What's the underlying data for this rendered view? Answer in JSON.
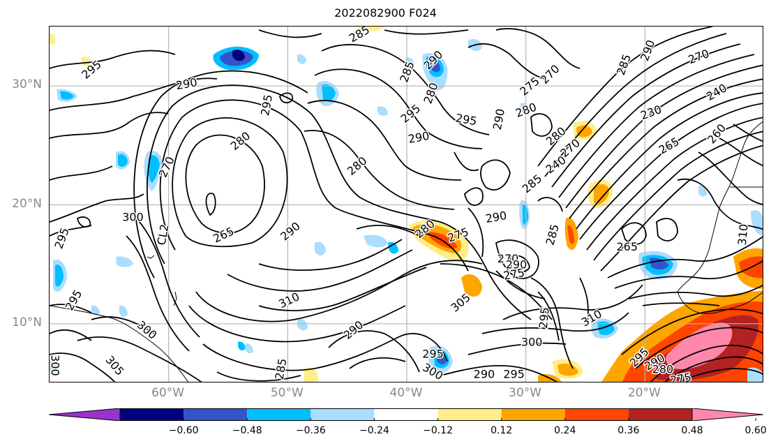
{
  "title": "2022082900 F024",
  "lat_labels": [
    {
      "label": "30°N",
      "lat": 30
    },
    {
      "label": "20°N",
      "lat": 20
    },
    {
      "label": "10°N",
      "lat": 10
    }
  ],
  "lon_labels": [
    {
      "label": "60°W",
      "lon": -60
    },
    {
      "label": "50°W",
      "lon": -50
    },
    {
      "label": "40°W",
      "lon": -40
    },
    {
      "label": "30°W",
      "lon": -30
    },
    {
      "label": "20°W",
      "lon": -20
    }
  ],
  "extent": {
    "lon_min": -70,
    "lon_max": -10,
    "lat_min": 5,
    "lat_max": 35
  },
  "colorbar": {
    "ticks": [
      "−0.60",
      "−0.48",
      "−0.36",
      "−0.24",
      "−0.12",
      "0.12",
      "0.24",
      "0.36",
      "0.48",
      "0.60"
    ],
    "colors": [
      "#9933cc",
      "#000080",
      "#3355cc",
      "#00bfff",
      "#aaddff",
      "#ffffff",
      "#ffee88",
      "#ffa500",
      "#ff4500",
      "#b22222",
      "#ff88aa"
    ]
  },
  "contour_labels": [
    {
      "text": "295",
      "lon": -66.5,
      "lat": 31.4,
      "rot": -40
    },
    {
      "text": "290",
      "lon": -58.5,
      "lat": 30.2,
      "rot": -10
    },
    {
      "text": "295",
      "lon": -51.8,
      "lat": 28.4,
      "rot": -80
    },
    {
      "text": "280",
      "lon": -54.0,
      "lat": 25.4,
      "rot": -40
    },
    {
      "text": "270",
      "lon": -60.2,
      "lat": 23.2,
      "rot": -65
    },
    {
      "text": "265",
      "lon": -55.4,
      "lat": 17.5,
      "rot": -25
    },
    {
      "text": "300",
      "lon": -63.0,
      "lat": 19.0,
      "rot": 0
    },
    {
      "text": "CL2",
      "lon": -60.5,
      "lat": 17.5,
      "rot": -80
    },
    {
      "text": "295",
      "lon": -69.0,
      "lat": 17.2,
      "rot": -70
    },
    {
      "text": "295",
      "lon": -68.0,
      "lat": 12.0,
      "rot": -60
    },
    {
      "text": "300",
      "lon": -61.8,
      "lat": 9.5,
      "rot": 40
    },
    {
      "text": "300",
      "lon": -69.5,
      "lat": 6.5,
      "rot": 90
    },
    {
      "text": "305",
      "lon": -64.5,
      "lat": 6.5,
      "rot": 50
    },
    {
      "text": "290",
      "lon": -49.8,
      "lat": 17.8,
      "rot": -40
    },
    {
      "text": "310",
      "lon": -49.9,
      "lat": 12.0,
      "rot": -25
    },
    {
      "text": "290",
      "lon": -44.5,
      "lat": 9.5,
      "rot": -40
    },
    {
      "text": "285",
      "lon": -50.6,
      "lat": 6.2,
      "rot": -80
    },
    {
      "text": "280",
      "lon": -44.2,
      "lat": 23.3,
      "rot": -40
    },
    {
      "text": "290",
      "lon": -39.0,
      "lat": 25.7,
      "rot": -10
    },
    {
      "text": "295",
      "lon": -39.7,
      "lat": 27.7,
      "rot": -40
    },
    {
      "text": "295",
      "lon": -35.0,
      "lat": 27.2,
      "rot": 10
    },
    {
      "text": "290",
      "lon": -32.3,
      "lat": 27.2,
      "rot": -80
    },
    {
      "text": "280",
      "lon": -30.0,
      "lat": 28.0,
      "rot": -20
    },
    {
      "text": "285",
      "lon": -44.0,
      "lat": 34.4,
      "rot": -30
    },
    {
      "text": "285",
      "lon": -40.0,
      "lat": 31.2,
      "rot": -70
    },
    {
      "text": "290",
      "lon": -37.8,
      "lat": 32.2,
      "rot": -45
    },
    {
      "text": "280",
      "lon": -38.0,
      "lat": 29.4,
      "rot": -70
    },
    {
      "text": "280",
      "lon": -38.5,
      "lat": 18.0,
      "rot": -40
    },
    {
      "text": "275",
      "lon": -35.7,
      "lat": 17.5,
      "rot": -20
    },
    {
      "text": "290",
      "lon": -32.5,
      "lat": 19.0,
      "rot": -10
    },
    {
      "text": "285",
      "lon": -29.5,
      "lat": 21.8,
      "rot": -40
    },
    {
      "text": "270",
      "lon": -31.5,
      "lat": 15.5,
      "rot": 0
    },
    {
      "text": "275",
      "lon": -31.0,
      "lat": 14.2,
      "rot": -10
    },
    {
      "text": "305",
      "lon": -35.5,
      "lat": 11.8,
      "rot": -40
    },
    {
      "text": "300",
      "lon": -29.5,
      "lat": 8.5,
      "rot": 0
    },
    {
      "text": "295",
      "lon": -37.8,
      "lat": 7.5,
      "rot": 0
    },
    {
      "text": "290",
      "lon": -33.5,
      "lat": 5.8,
      "rot": 0
    },
    {
      "text": "295",
      "lon": -31.0,
      "lat": 5.8,
      "rot": 0
    },
    {
      "text": "300",
      "lon": -37.8,
      "lat": 6.0,
      "rot": 30
    },
    {
      "text": "295",
      "lon": -28.5,
      "lat": 10.5,
      "rot": -85
    },
    {
      "text": "310",
      "lon": -24.5,
      "lat": 10.5,
      "rot": -30
    },
    {
      "text": "285",
      "lon": -27.8,
      "lat": 17.5,
      "rot": -75
    },
    {
      "text": "265",
      "lon": -21.5,
      "lat": 16.5,
      "rot": 0
    },
    {
      "text": "275",
      "lon": -29.7,
      "lat": 30.0,
      "rot": -40
    },
    {
      "text": "270",
      "lon": -28.0,
      "lat": 31.0,
      "rot": -45
    },
    {
      "text": "280",
      "lon": -27.5,
      "lat": 25.8,
      "rot": -40
    },
    {
      "text": "270",
      "lon": -26.3,
      "lat": 24.8,
      "rot": -40
    },
    {
      "text": "240",
      "lon": -27.5,
      "lat": 23.4,
      "rot": -35
    },
    {
      "text": "285",
      "lon": -21.8,
      "lat": 31.8,
      "rot": -70
    },
    {
      "text": "290",
      "lon": -19.8,
      "lat": 33.0,
      "rot": -70
    },
    {
      "text": "270",
      "lon": -15.5,
      "lat": 32.5,
      "rot": -20
    },
    {
      "text": "240",
      "lon": -14.0,
      "lat": 29.5,
      "rot": -30
    },
    {
      "text": "230",
      "lon": -19.5,
      "lat": 27.8,
      "rot": -20
    },
    {
      "text": "265",
      "lon": -18.0,
      "lat": 25.0,
      "rot": -30
    },
    {
      "text": "260",
      "lon": -14.0,
      "lat": 26.0,
      "rot": -50
    },
    {
      "text": "310",
      "lon": -11.8,
      "lat": 17.5,
      "rot": -85
    },
    {
      "text": "290",
      "lon": -19.2,
      "lat": 6.8,
      "rot": -30
    },
    {
      "text": "280",
      "lon": -18.5,
      "lat": 6.2,
      "rot": 0
    },
    {
      "text": "275",
      "lon": -17.0,
      "lat": 5.4,
      "rot": -10
    },
    {
      "text": "295",
      "lon": -20.5,
      "lat": 7.2,
      "rot": -45
    },
    {
      "text": "290",
      "lon": -30.8,
      "lat": 15.0,
      "rot": 0
    }
  ]
}
